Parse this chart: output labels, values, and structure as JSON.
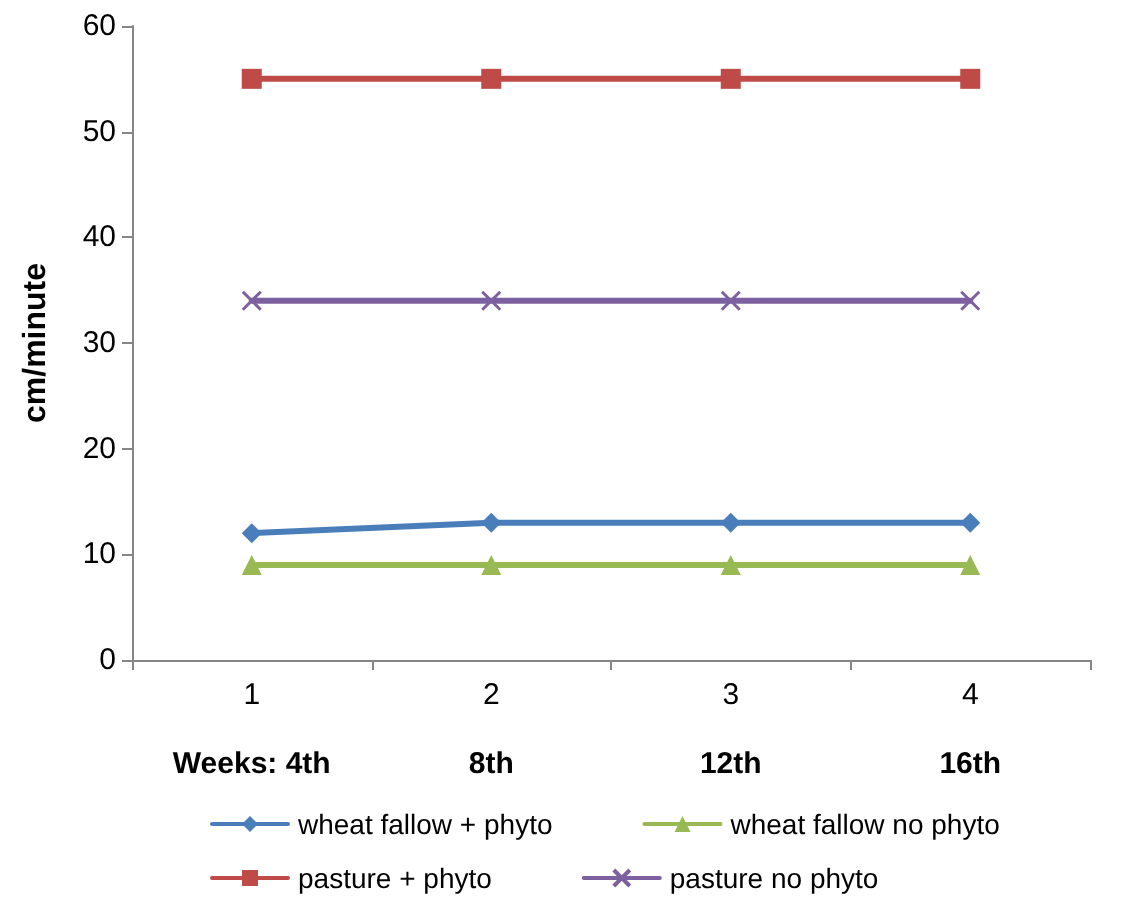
{
  "chart_data": {
    "type": "line",
    "ylabel": "cm/minute",
    "categories": [
      "1",
      "2",
      "3",
      "4"
    ],
    "series": [
      {
        "name": "wheat fallow + phyto",
        "color": "#4a7ebb",
        "marker": "diamond",
        "values": [
          12,
          13,
          13,
          13
        ]
      },
      {
        "name": "wheat fallow no phyto",
        "color": "#98b954",
        "marker": "triangle",
        "values": [
          9,
          9,
          9,
          9
        ]
      },
      {
        "name": "pasture + phyto",
        "color": "#be4b48",
        "marker": "square",
        "values": [
          55,
          55,
          55,
          55
        ]
      },
      {
        "name": "pasture no phyto",
        "color": "#7d60a0",
        "marker": "cross",
        "values": [
          34,
          34,
          34,
          34
        ]
      }
    ],
    "ylim": [
      0,
      60
    ],
    "yticks": [
      0,
      10,
      20,
      30,
      40,
      50,
      60
    ],
    "grid": false,
    "legend": "bottom",
    "annotations": [
      "Weeks: 4th",
      "8th",
      "12th",
      "16th"
    ]
  }
}
